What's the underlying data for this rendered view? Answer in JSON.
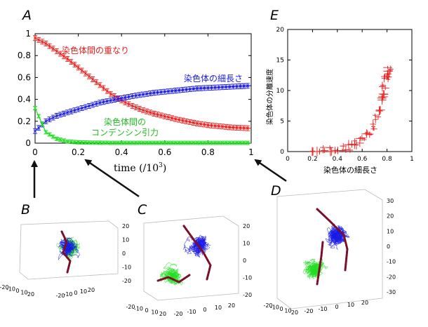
{
  "panel_labels": {
    "a": "A",
    "b": "B",
    "c": "C",
    "d": "D",
    "e": "E"
  },
  "colors": {
    "red": "#ee1c1c",
    "blue": "#1a1ae6",
    "green": "#22dd22",
    "chain": "#7a0f2a"
  },
  "chart_data": [
    {
      "type": "line",
      "panel": "A",
      "title": "",
      "xlabel": "time (/10",
      "xlabel_sup": "3",
      "xlabel_close": ")",
      "ylabel": "",
      "xlim": [
        0,
        1
      ],
      "ylim": [
        0,
        1
      ],
      "xticks": [
        "0",
        "0.2",
        "0.4",
        "0.6",
        "0.8",
        "1"
      ],
      "yticks": [
        "0",
        "0.2",
        "0.4",
        "0.6",
        "0.8",
        "1"
      ],
      "x": [
        0,
        0.05,
        0.1,
        0.15,
        0.2,
        0.25,
        0.3,
        0.35,
        0.4,
        0.45,
        0.5,
        0.55,
        0.6,
        0.65,
        0.7,
        0.75,
        0.8,
        0.85,
        0.9,
        0.95,
        1.0
      ],
      "series": [
        {
          "name": "染色体間の重なり",
          "color": "#ee1c1c",
          "values": [
            0.96,
            0.91,
            0.84,
            0.77,
            0.69,
            0.61,
            0.53,
            0.45,
            0.39,
            0.34,
            0.3,
            0.27,
            0.245,
            0.22,
            0.2,
            0.18,
            0.165,
            0.155,
            0.145,
            0.14,
            0.135
          ]
        },
        {
          "name": "染色体の細長さ",
          "color": "#1a1ae6",
          "values": [
            0.11,
            0.2,
            0.25,
            0.28,
            0.31,
            0.34,
            0.37,
            0.39,
            0.41,
            0.43,
            0.445,
            0.46,
            0.47,
            0.48,
            0.49,
            0.5,
            0.505,
            0.51,
            0.515,
            0.52,
            0.525
          ]
        },
        {
          "name": "染色体間の\nコンデンシン引力",
          "color": "#22dd22",
          "values": [
            0.32,
            0.1,
            0.04,
            0.015,
            0.008,
            0.005,
            0.004,
            0.003,
            0.003,
            0.003,
            0.003,
            0.003,
            0.003,
            0.003,
            0.003,
            0.003,
            0.003,
            0.003,
            0.003,
            0.003,
            0.003
          ]
        }
      ]
    },
    {
      "type": "scatter",
      "panel": "E",
      "title": "",
      "xlabel": "染色体の細長さ",
      "ylabel": "染色体の分離速度",
      "xlim": [
        0,
        1
      ],
      "ylim": [
        0,
        20
      ],
      "xticks": [
        "0",
        "0.2",
        "0.4",
        "0.6",
        "0.8",
        "1"
      ],
      "yticks": [
        "0",
        "5",
        "10",
        "15",
        "20"
      ],
      "color": "#ee1c1c",
      "points": [
        [
          0.2,
          0.0
        ],
        [
          0.25,
          0.05
        ],
        [
          0.3,
          0.1
        ],
        [
          0.35,
          0.2
        ],
        [
          0.4,
          0.3
        ],
        [
          0.45,
          0.5
        ],
        [
          0.5,
          0.8
        ],
        [
          0.55,
          1.2
        ],
        [
          0.6,
          1.8
        ],
        [
          0.63,
          2.5
        ],
        [
          0.66,
          3.3
        ],
        [
          0.69,
          4.2
        ],
        [
          0.72,
          5.5
        ],
        [
          0.74,
          6.8
        ],
        [
          0.76,
          8.2
        ],
        [
          0.77,
          9.5
        ],
        [
          0.78,
          10.8
        ],
        [
          0.79,
          11.8
        ],
        [
          0.8,
          12.6
        ],
        [
          0.81,
          13.1
        ],
        [
          0.82,
          13.5
        ]
      ]
    }
  ],
  "snapshots": [
    {
      "panel": "B",
      "z_ticks": [
        "20",
        "10",
        "0",
        "-10",
        "-20"
      ],
      "x_ticks": [
        "-20",
        "-10",
        "0",
        "10",
        "20"
      ],
      "y_ticks": [
        "20",
        "10",
        "0",
        "-10",
        "-20"
      ]
    },
    {
      "panel": "C",
      "z_ticks": [
        "20",
        "10",
        "0",
        "-10",
        "-20"
      ],
      "x_ticks": [
        "-20",
        "-10",
        "0",
        "10",
        "20"
      ],
      "y_ticks": [
        "20",
        "10",
        "0",
        "-10",
        "-20"
      ]
    },
    {
      "panel": "D",
      "z_ticks": [
        "30",
        "20",
        "10",
        "0",
        "-10",
        "-20",
        "-30"
      ],
      "x_ticks": [
        "-20",
        "-10",
        "0",
        "10",
        "20"
      ],
      "y_ticks": [
        "20",
        "10",
        "0",
        "-10",
        "-20"
      ]
    }
  ]
}
